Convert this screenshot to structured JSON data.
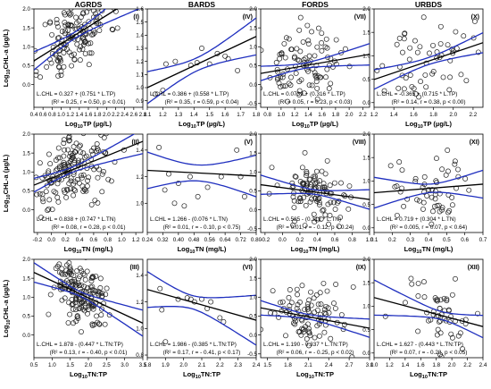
{
  "figure": {
    "column_titles": [
      "AGRDS",
      "BARDS",
      "FORDS",
      "URBDS"
    ],
    "ylabel_prefix": "Log",
    "ylabel_sub": "10",
    "ylabel_suffix": "CHL-a (µg/L)",
    "xlabels": [
      {
        "prefix": "Log",
        "sub": "10",
        "suffix": "TP (µg/L)"
      },
      {
        "prefix": "Log",
        "sub": "10",
        "suffix": "TN (mg/L)"
      },
      {
        "prefix": "Log",
        "sub": "10",
        "suffix": "TN:TP"
      }
    ]
  },
  "chart_data": [
    {
      "type": "scatter",
      "panel": "I",
      "column": "AGRDS",
      "row": 1,
      "xticks": [
        "0.4",
        "0.6",
        "0.8",
        "1.0",
        "1.2",
        "1.4",
        "1.6",
        "1.8",
        "2.0",
        "2.2",
        "2.4",
        "2.6",
        "2.8"
      ],
      "xlim": [
        0.4,
        2.8
      ],
      "yticks": [
        "0.0",
        "0.5",
        "1.0",
        "1.5",
        "2.0"
      ],
      "ylim": [
        -0.6,
        2.0
      ],
      "equation": "L.CHL = 0.327 + (0.751 * L.TP)",
      "stats": "(R² = 0.25, r = 0.50, p < 0.01)",
      "intercept": 0.327,
      "slope": 0.751,
      "band": 0.17,
      "points": {
        "n": 150,
        "xmean": 1.3,
        "xsd": 0.38,
        "ysd": 0.48,
        "seed": 11
      }
    },
    {
      "type": "scatter",
      "panel": "IV",
      "column": "BARDS",
      "row": 1,
      "xticks": [
        "1.1",
        "1.2",
        "1.3",
        "1.4",
        "1.5",
        "1.6",
        "1.7",
        "1.8"
      ],
      "xlim": [
        1.1,
        1.8
      ],
      "yticks": [
        "0.9",
        "1.0",
        "1.1",
        "1.2",
        "1.3",
        "1.4",
        "1.5",
        "1.6"
      ],
      "ylim": [
        0.85,
        1.6
      ],
      "equation": "L.CHL = 0.386 + (0.558 * L.TP)",
      "stats": "(R² = 0.35, r = 0.59, p < 0.04)",
      "intercept": 0.386,
      "slope": 0.558,
      "band": 0.1,
      "points": {
        "list": [
          [
            1.22,
            1.18
          ],
          [
            1.28,
            1.2
          ],
          [
            1.38,
            1.17
          ],
          [
            1.42,
            1.19
          ],
          [
            1.45,
            1.3
          ],
          [
            1.5,
            1.18
          ],
          [
            1.55,
            1.26
          ],
          [
            1.6,
            1.24
          ],
          [
            1.62,
            1.22
          ],
          [
            1.68,
            1.13
          ],
          [
            1.2,
            0.98
          ],
          [
            1.15,
            0.95
          ]
        ]
      }
    },
    {
      "type": "scatter",
      "panel": "VII",
      "column": "FORDS",
      "row": 1,
      "xticks": [
        "0.8",
        "1.0",
        "1.2",
        "1.4",
        "1.6",
        "1.8",
        "2.0",
        "2.2"
      ],
      "xlim": [
        0.7,
        2.3
      ],
      "yticks": [
        "-0.5",
        "0.0",
        "0.5",
        "1.0",
        "1.5",
        "2.0"
      ],
      "ylim": [
        -0.6,
        2.0
      ],
      "equation": "L.CHL = 0.0739 + (0.316 * L.TP)",
      "stats": "(R² = 0.05, r = 0.23, p < 0.03)",
      "intercept": 0.0739,
      "slope": 0.316,
      "band": 0.14,
      "points": {
        "n": 100,
        "xmean": 1.3,
        "xsd": 0.28,
        "ysd": 0.42,
        "seed": 23
      }
    },
    {
      "type": "scatter",
      "panel": "X",
      "column": "URBDS",
      "row": 1,
      "xticks": [
        "1.2",
        "1.4",
        "1.6",
        "1.8",
        "2.0",
        "2.2"
      ],
      "xlim": [
        1.2,
        2.3
      ],
      "yticks": [
        "0.0",
        "0.5",
        "1.0",
        "1.5",
        "2.0"
      ],
      "ylim": [
        -0.1,
        2.0
      ],
      "equation": "L.CHL = -0.365 + (0.715 * L.TP)",
      "stats": "(R² = 0.14, r = 0.38, p < 0.00)",
      "intercept": -0.365,
      "slope": 0.715,
      "band": 0.15,
      "points": {
        "n": 55,
        "xmean": 1.75,
        "xsd": 0.22,
        "ysd": 0.4,
        "seed": 37
      }
    },
    {
      "type": "scatter",
      "panel": "II",
      "column": "AGRDS",
      "row": 2,
      "xticks": [
        "-0.2",
        "0.0",
        "0.2",
        "0.4",
        "0.6",
        "0.8",
        "1.0",
        "1.2"
      ],
      "xlim": [
        -0.25,
        1.3
      ],
      "yticks": [
        "0.0",
        "0.5",
        "1.0",
        "1.5",
        "2.0"
      ],
      "ylim": [
        -0.6,
        2.0
      ],
      "equation": "L.CHL = 0.838 + (0.747 * L.TN)",
      "stats": "(R² = 0.08, r = 0.28, p < 0.01)",
      "intercept": 0.838,
      "slope": 0.747,
      "band": 0.14,
      "points": {
        "n": 170,
        "xmean": 0.3,
        "xsd": 0.28,
        "ysd": 0.45,
        "seed": 41
      }
    },
    {
      "type": "scatter",
      "panel": "V",
      "column": "BARDS",
      "row": 2,
      "xticks": [
        "0.24",
        "0.32",
        "0.40",
        "0.48",
        "0.56",
        "0.64",
        "0.72",
        "0.80"
      ],
      "xlim": [
        0.24,
        0.8
      ],
      "yticks": [
        "1.0",
        "1.2",
        "1.4"
      ],
      "ylim": [
        0.78,
        1.52
      ],
      "equation": "L.CHL = 1.266 - (0.076 * L.TN)",
      "stats": "(R² = 0.01, r = - 0.10, p < 0.75)",
      "intercept": 1.266,
      "slope": -0.076,
      "band": 0.12,
      "points": {
        "list": [
          [
            0.3,
            1.42
          ],
          [
            0.33,
            1.1
          ],
          [
            0.35,
            1.22
          ],
          [
            0.38,
            1.0
          ],
          [
            0.4,
            1.15
          ],
          [
            0.43,
            0.98
          ],
          [
            0.46,
            1.2
          ],
          [
            0.5,
            1.05
          ],
          [
            0.55,
            1.12
          ],
          [
            0.62,
            1.2
          ],
          [
            0.7,
            1.4
          ],
          [
            0.72,
            1.2
          ],
          [
            0.74,
            1.05
          ]
        ]
      }
    },
    {
      "type": "scatter",
      "panel": "VIII",
      "column": "FORDS",
      "row": 2,
      "xticks": [
        "-0.2",
        "0.0",
        "0.2",
        "0.4",
        "0.6",
        "0.8",
        "1.0"
      ],
      "xlim": [
        -0.25,
        1.0
      ],
      "yticks": [
        "-0.5",
        "0.0",
        "0.5",
        "1.0",
        "1.5",
        "2.0"
      ],
      "ylim": [
        -0.6,
        2.0
      ],
      "equation": "L.CHL = 0.585 - (0.312 * L.TN)",
      "stats": "(R² = 0.01, r = - 0.12, p < 0.24)",
      "intercept": 0.585,
      "slope": -0.312,
      "band": 0.12,
      "points": {
        "n": 110,
        "xmean": 0.38,
        "xsd": 0.2,
        "ysd": 0.4,
        "seed": 53
      }
    },
    {
      "type": "scatter",
      "panel": "XI",
      "column": "URBDS",
      "row": 2,
      "xticks": [
        "0.1",
        "0.2",
        "0.3",
        "0.4",
        "0.5",
        "0.6",
        "0.7"
      ],
      "xlim": [
        0.1,
        0.7
      ],
      "yticks": [
        "0.0",
        "0.5",
        "1.0",
        "1.5",
        "2.0"
      ],
      "ylim": [
        -0.1,
        2.0
      ],
      "equation": "L.CHL = 0.719 + (0.304 * L.TN)",
      "stats": "(R² = 0.005, r = 0.07, p < 0.64)",
      "intercept": 0.719,
      "slope": 0.304,
      "band": 0.18,
      "points": {
        "n": 55,
        "xmean": 0.4,
        "xsd": 0.12,
        "ysd": 0.42,
        "seed": 61
      }
    },
    {
      "type": "scatter",
      "panel": "III",
      "column": "AGRDS",
      "row": 3,
      "xticks": [
        "0.5",
        "1.0",
        "1.5",
        "2.0",
        "2.5",
        "3.0",
        "3.5"
      ],
      "xlim": [
        0.5,
        3.5
      ],
      "yticks": [
        "0.0",
        "0.5",
        "1.0",
        "1.5",
        "2.0"
      ],
      "ylim": [
        -0.6,
        2.0
      ],
      "equation": "L.CHL = 1.878 - (0.447 * L.TN:TP)",
      "stats": "(R² = 0.13, r = - 0.40, p < 0.01)",
      "intercept": 1.878,
      "slope": -0.447,
      "band": 0.12,
      "points": {
        "n": 170,
        "xmean": 1.8,
        "xsd": 0.42,
        "ysd": 0.45,
        "seed": 71
      }
    },
    {
      "type": "scatter",
      "panel": "VI",
      "column": "BARDS",
      "row": 3,
      "xticks": [
        "1.8",
        "1.9",
        "2.0",
        "2.1",
        "2.2",
        "2.3",
        "2.4"
      ],
      "xlim": [
        1.8,
        2.4
      ],
      "yticks": [
        "0.8",
        "1.0",
        "1.2",
        "1.4"
      ],
      "ylim": [
        0.78,
        1.52
      ],
      "equation": "L.CHL = 1.986 - (0.385 * L.TN:TP)",
      "stats": "(R² = 0.17, r = - 0.41, p < 0.17)",
      "intercept": 1.986,
      "slope": -0.385,
      "band": 0.1,
      "points": {
        "list": [
          [
            1.87,
            1.3
          ],
          [
            1.88,
            1.14
          ],
          [
            1.97,
            1.22
          ],
          [
            2.02,
            1.23
          ],
          [
            2.04,
            1.22
          ],
          [
            2.06,
            1.2
          ],
          [
            2.1,
            1.22
          ],
          [
            2.13,
            1.15
          ],
          [
            2.15,
            1.2
          ],
          [
            2.2,
            1.08
          ],
          [
            2.22,
            1.05
          ],
          [
            1.9,
            0.9
          ]
        ]
      }
    },
    {
      "type": "scatter",
      "panel": "IX",
      "column": "FORDS",
      "row": 3,
      "xticks": [
        "1.5",
        "1.8",
        "2.1",
        "2.4",
        "2.7",
        "3.0"
      ],
      "xlim": [
        1.4,
        3.0
      ],
      "yticks": [
        "-0.5",
        "0.0",
        "0.5",
        "1.0",
        "1.5",
        "2.0"
      ],
      "ylim": [
        -0.6,
        2.0
      ],
      "equation": "L.CHL = 1.190 - 0.337 * L.TN:TP)",
      "stats": "(R² = 0.06, r = - 0.25, p < 0.02)",
      "intercept": 1.19,
      "slope": -0.337,
      "band": 0.12,
      "points": {
        "n": 100,
        "xmean": 2.1,
        "xsd": 0.27,
        "ysd": 0.4,
        "seed": 83
      }
    },
    {
      "type": "scatter",
      "panel": "XII",
      "column": "URBDS",
      "row": 3,
      "xticks": [
        "1.0",
        "1.2",
        "1.4",
        "1.6",
        "1.8",
        "2.0",
        "2.2",
        "2.4"
      ],
      "xlim": [
        1.0,
        2.4
      ],
      "yticks": [
        "0.0",
        "0.5",
        "1.0",
        "1.5",
        "2.0"
      ],
      "ylim": [
        -0.1,
        2.0
      ],
      "equation": "L.CHL = 1.627 - (0.443 * L.TN:TP)",
      "stats": "(R² = 0.07, r = - 0.28, p < 0.05)",
      "intercept": 1.627,
      "slope": -0.443,
      "band": 0.17,
      "points": {
        "n": 55,
        "xmean": 1.75,
        "xsd": 0.3,
        "ysd": 0.42,
        "seed": 97
      }
    }
  ]
}
